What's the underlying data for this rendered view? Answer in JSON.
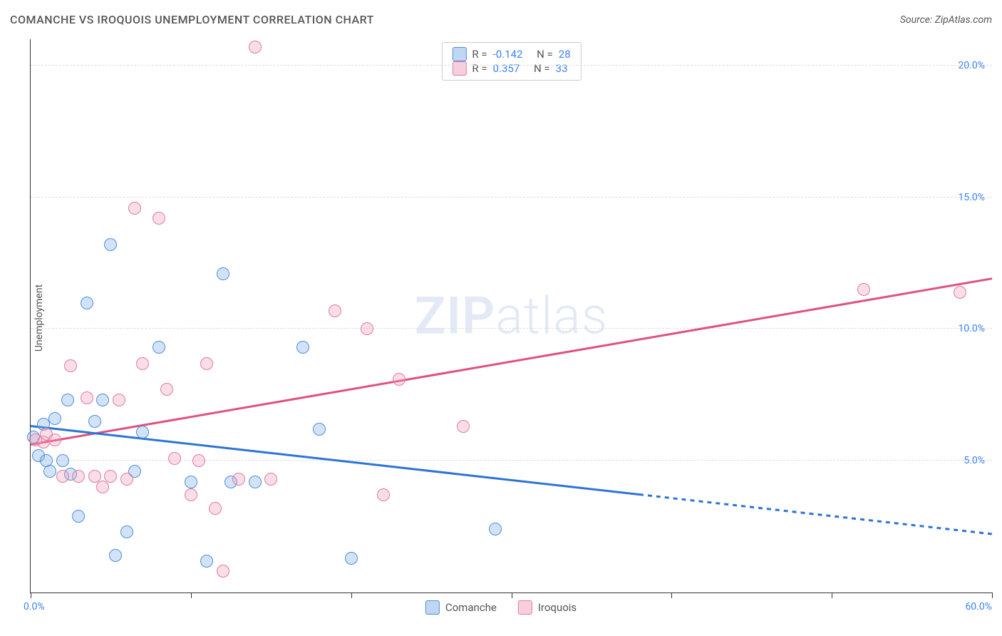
{
  "title": "COMANCHE VS IROQUOIS UNEMPLOYMENT CORRELATION CHART",
  "source_label": "Source: ZipAtlas.com",
  "ylabel": "Unemployment",
  "watermark": {
    "bold": "ZIP",
    "rest": "atlas"
  },
  "chart": {
    "type": "scatter",
    "xlim": [
      0,
      60
    ],
    "ylim": [
      0,
      21
    ],
    "xtick_positions": [
      0,
      10,
      20,
      30,
      40,
      50,
      60
    ],
    "x_min_label": "0.0%",
    "x_max_label": "60.0%",
    "yticks": [
      {
        "v": 5,
        "label": "5.0%"
      },
      {
        "v": 10,
        "label": "10.0%"
      },
      {
        "v": 15,
        "label": "15.0%"
      },
      {
        "v": 20,
        "label": "20.0%"
      }
    ],
    "grid_color": "#dddddd",
    "axis_color": "#333333",
    "background_color": "#ffffff",
    "series": [
      {
        "name": "Comanche",
        "fill_color": "rgba(130,176,232,0.35)",
        "stroke_color": "#4b8fd9",
        "trend_color": "#2d74d6",
        "marker_radius": 9,
        "stats": {
          "R": "-0.142",
          "N": "28"
        },
        "trend": {
          "x1": 0,
          "y1": 6.3,
          "x2": 38,
          "y2": 3.7,
          "dash_to_x": 60,
          "dash_to_y": 2.2
        },
        "points": [
          [
            0.2,
            5.9
          ],
          [
            0.5,
            5.2
          ],
          [
            0.8,
            6.4
          ],
          [
            1.0,
            5.0
          ],
          [
            1.2,
            4.6
          ],
          [
            1.5,
            6.6
          ],
          [
            2.0,
            5.0
          ],
          [
            2.3,
            7.3
          ],
          [
            2.5,
            4.5
          ],
          [
            3.0,
            2.9
          ],
          [
            3.5,
            11.0
          ],
          [
            4.0,
            6.5
          ],
          [
            4.5,
            7.3
          ],
          [
            5.0,
            13.2
          ],
          [
            5.3,
            1.4
          ],
          [
            6.0,
            2.3
          ],
          [
            6.5,
            4.6
          ],
          [
            7.0,
            6.1
          ],
          [
            8.0,
            9.3
          ],
          [
            10.0,
            4.2
          ],
          [
            11.0,
            1.2
          ],
          [
            12.0,
            12.1
          ],
          [
            12.5,
            4.2
          ],
          [
            14.0,
            4.2
          ],
          [
            17.0,
            9.3
          ],
          [
            18.0,
            6.2
          ],
          [
            20.0,
            1.3
          ],
          [
            29.0,
            2.4
          ]
        ]
      },
      {
        "name": "Iroquois",
        "fill_color": "rgba(240,160,185,0.35)",
        "stroke_color": "#e17aa0",
        "trend_color": "#e0517f",
        "marker_radius": 9,
        "stats": {
          "R": "0.357",
          "N": "33"
        },
        "trend": {
          "x1": 0,
          "y1": 5.6,
          "x2": 60,
          "y2": 11.9
        },
        "points": [
          [
            0.3,
            5.8
          ],
          [
            0.8,
            5.7
          ],
          [
            1.0,
            6.0
          ],
          [
            1.5,
            5.8
          ],
          [
            2.0,
            4.4
          ],
          [
            2.5,
            8.6
          ],
          [
            3.0,
            4.4
          ],
          [
            3.5,
            7.4
          ],
          [
            4.0,
            4.4
          ],
          [
            4.5,
            4.0
          ],
          [
            5.0,
            4.4
          ],
          [
            5.5,
            7.3
          ],
          [
            6.0,
            4.3
          ],
          [
            6.5,
            14.6
          ],
          [
            7.0,
            8.7
          ],
          [
            8.0,
            14.2
          ],
          [
            8.5,
            7.7
          ],
          [
            9.0,
            5.1
          ],
          [
            10.0,
            3.7
          ],
          [
            10.5,
            5.0
          ],
          [
            11.0,
            8.7
          ],
          [
            11.5,
            3.2
          ],
          [
            12.0,
            0.8
          ],
          [
            13.0,
            4.3
          ],
          [
            14.0,
            20.7
          ],
          [
            15.0,
            4.3
          ],
          [
            19.0,
            10.7
          ],
          [
            21.0,
            10.0
          ],
          [
            22.0,
            3.7
          ],
          [
            23.0,
            8.1
          ],
          [
            27.0,
            6.3
          ],
          [
            52.0,
            11.5
          ],
          [
            58.0,
            11.4
          ]
        ]
      }
    ]
  },
  "legend": {
    "series1_label": "Comanche",
    "series2_label": "Iroquois"
  },
  "stats_box": {
    "r_label": "R =",
    "n_label": "N ="
  }
}
